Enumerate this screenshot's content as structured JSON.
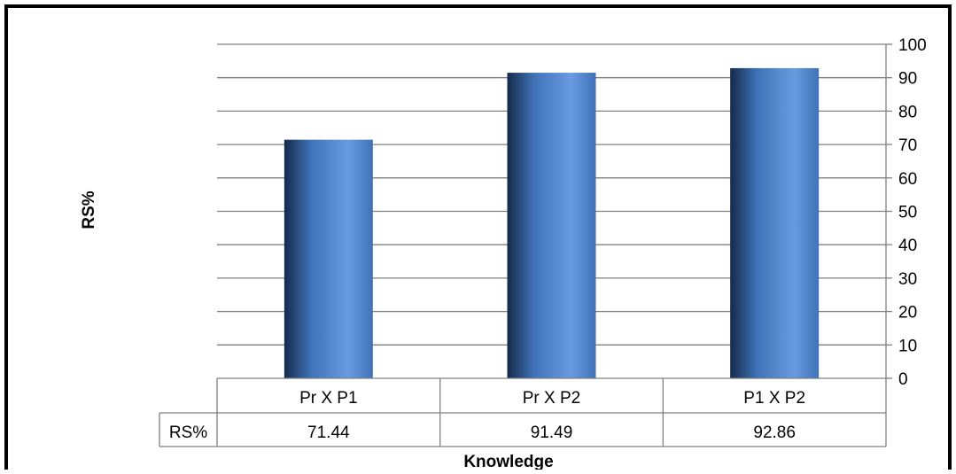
{
  "chart_data": {
    "type": "bar",
    "title": "",
    "xlabel": "Knowledge",
    "ylabel": "RS%",
    "categories": [
      "Pr X P1",
      "Pr X P2",
      "P1 X P2"
    ],
    "series": [
      {
        "name": "RS%",
        "values": [
          71.44,
          91.49,
          92.86
        ]
      }
    ],
    "value_labels": [
      "71.44",
      "91.49",
      "92.86"
    ],
    "ylim": [
      0,
      100
    ],
    "yticks": [
      "0",
      "10",
      "20",
      "30",
      "40",
      "50",
      "60",
      "70",
      "80",
      "90",
      "100"
    ],
    "y_axis_side": "right",
    "grid": true,
    "legend": "data-table",
    "colors": {
      "bar_light": "#6a9be0",
      "bar_mid": "#3f72b6",
      "bar_dark": "#152a4a",
      "grid": "#808080",
      "frame": "#000000"
    }
  }
}
